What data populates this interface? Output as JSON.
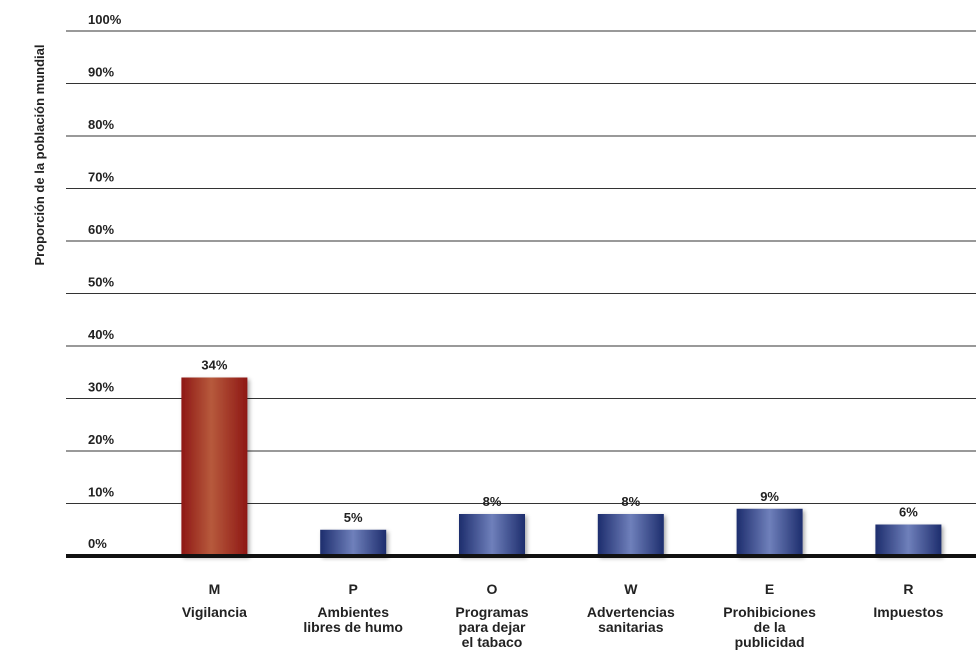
{
  "chart_data": {
    "type": "bar",
    "ylabel": "Proporción de la población mundial",
    "xlabel": "",
    "title": "",
    "ylim": [
      0,
      100
    ],
    "yticks": [
      "0%",
      "10%",
      "20%",
      "30%",
      "40%",
      "50%",
      "60%",
      "70%",
      "80%",
      "90%",
      "100%"
    ],
    "grid": true,
    "categories": [
      {
        "letter": "M",
        "name_lines": [
          "Vigilancia"
        ]
      },
      {
        "letter": "P",
        "name_lines": [
          "Ambientes",
          "libres de humo"
        ]
      },
      {
        "letter": "O",
        "name_lines": [
          "Programas",
          "para dejar",
          "el tabaco"
        ]
      },
      {
        "letter": "W",
        "name_lines": [
          "Advertencias",
          "sanitarias"
        ]
      },
      {
        "letter": "E",
        "name_lines": [
          "Prohibiciones",
          "de la",
          "publicidad"
        ]
      },
      {
        "letter": "R",
        "name_lines": [
          "Impuestos"
        ]
      }
    ],
    "values": [
      34,
      5,
      8,
      8,
      9,
      6
    ],
    "value_labels": [
      "34%",
      "5%",
      "8%",
      "8%",
      "9%",
      "6%"
    ],
    "bar_colors": [
      "#a8221f",
      "#273a80",
      "#273a80",
      "#273a80",
      "#273a80",
      "#273a80"
    ]
  }
}
